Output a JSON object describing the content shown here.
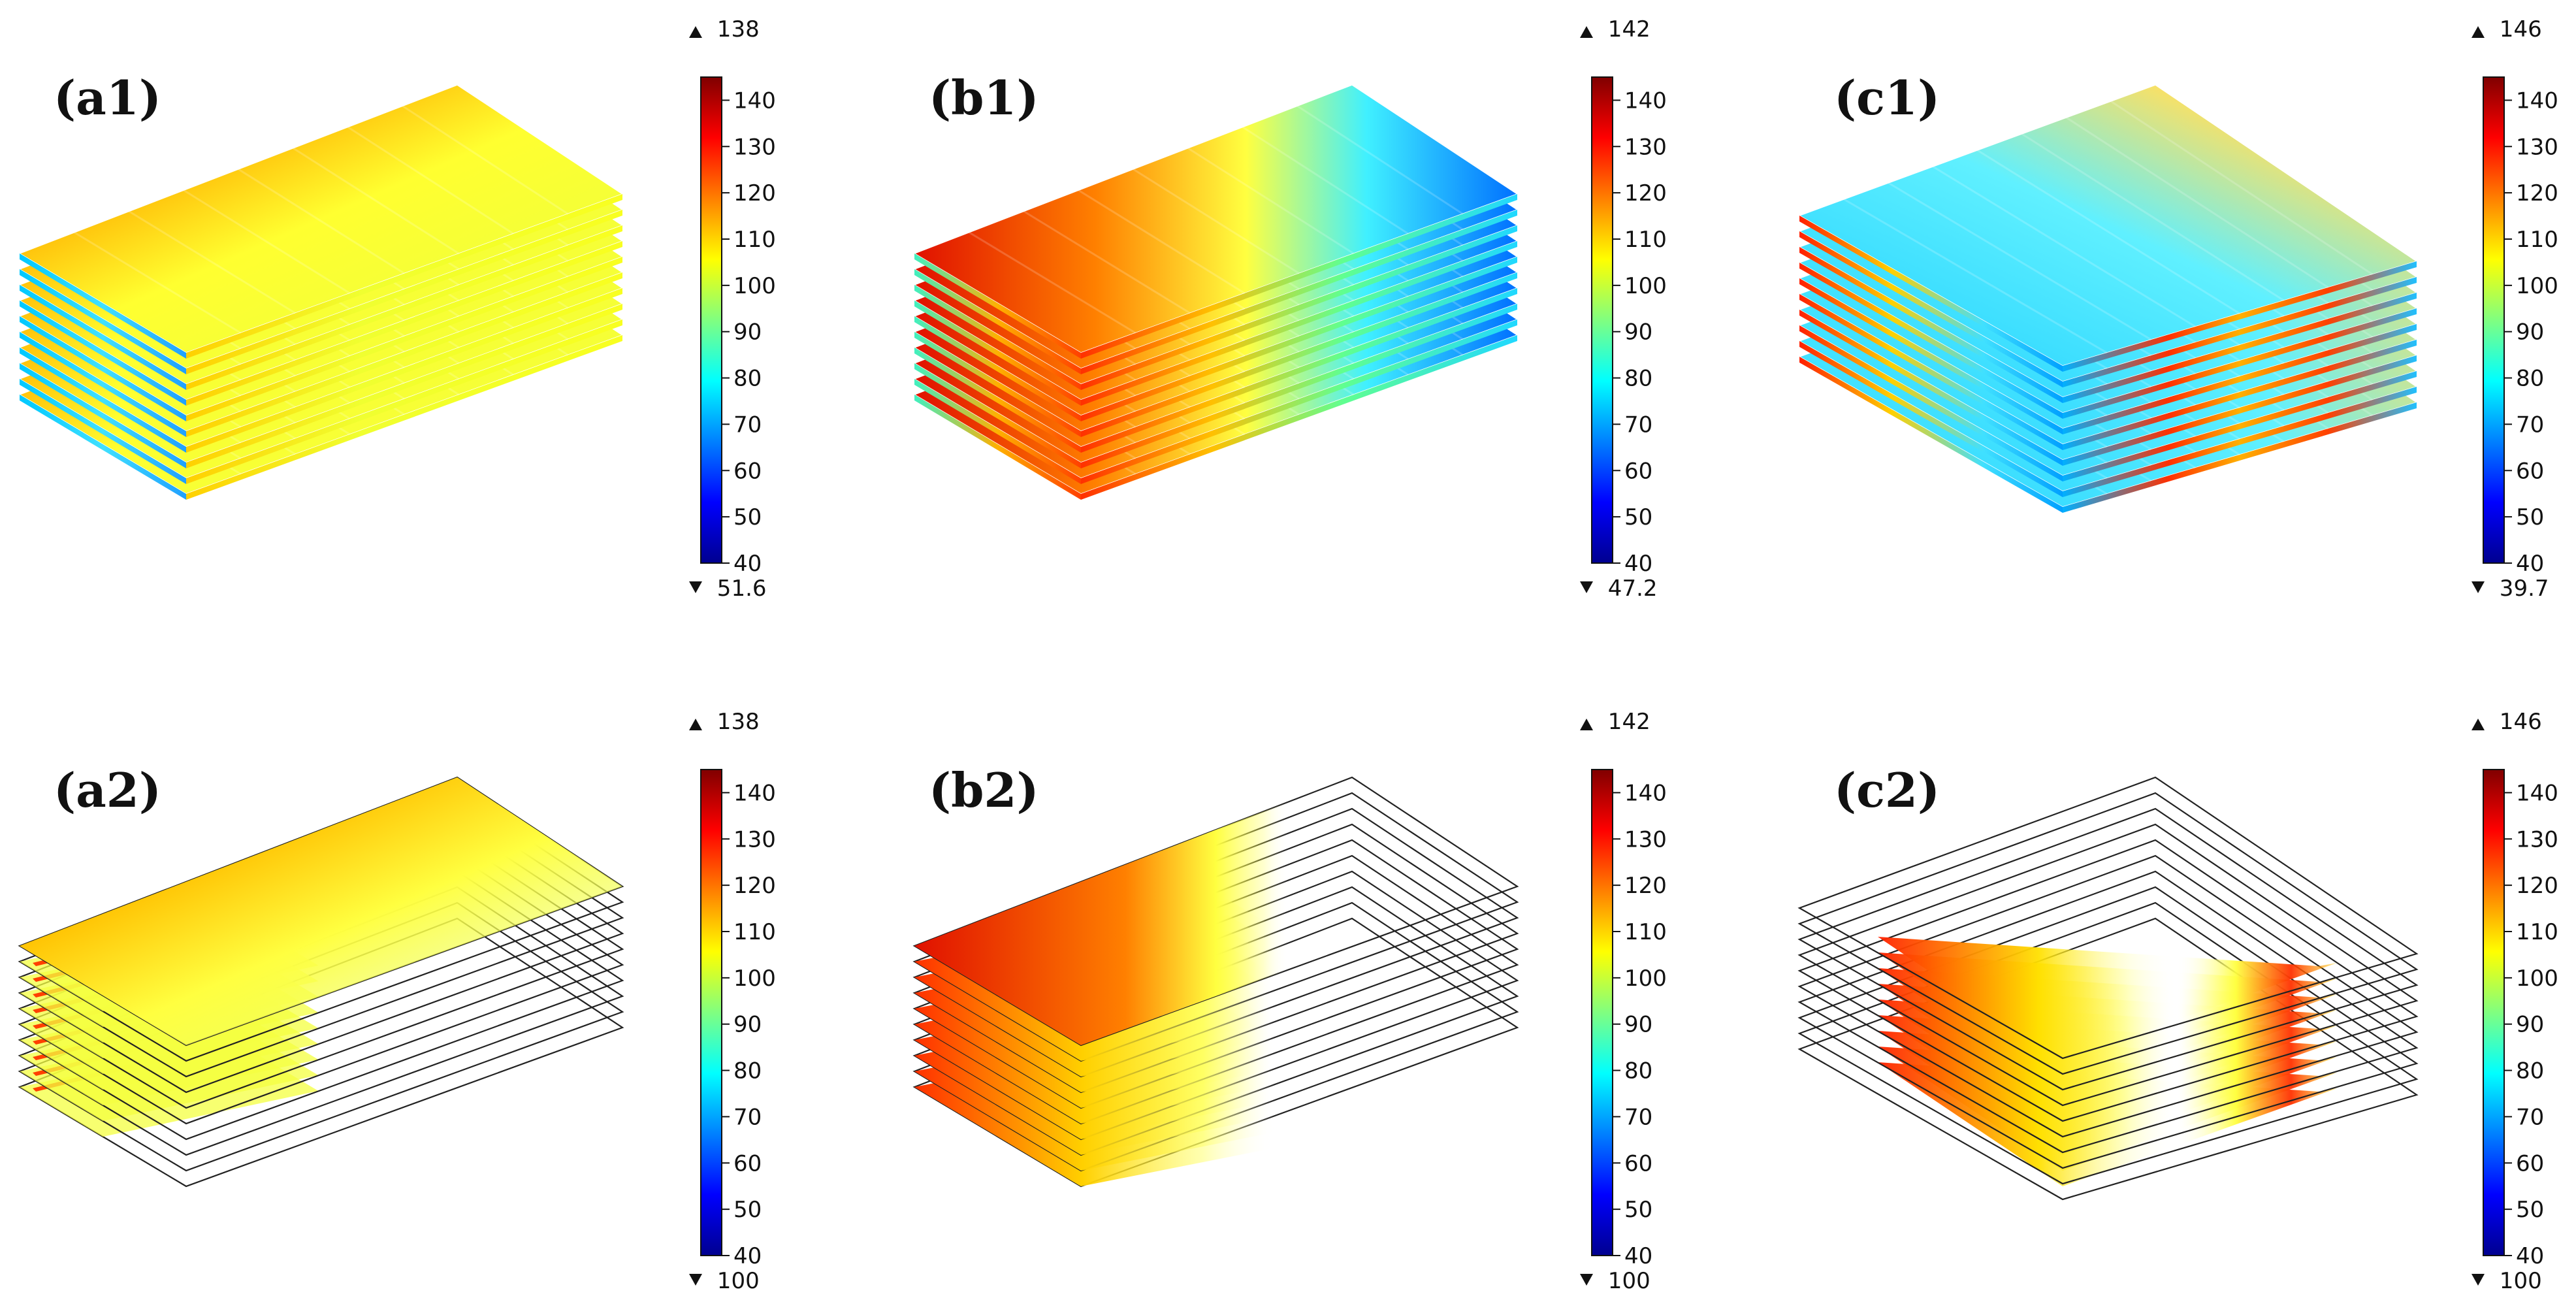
{
  "colormap_stops": [
    "#00008f",
    "#0000ff",
    "#0080ff",
    "#00ffff",
    "#80ff80",
    "#ffff00",
    "#ff8000",
    "#ff0000",
    "#800000"
  ],
  "chart_data": [
    {
      "type": "heatmap",
      "panel": "(a1)",
      "colorbar": {
        "range": [
          40,
          145
        ],
        "ticks": [
          40,
          50,
          60,
          70,
          80,
          90,
          100,
          110,
          120,
          130,
          140
        ],
        "max_label": "138",
        "min_label": "51.6"
      },
      "render": "full",
      "temperature_trend": {
        "hot": 138,
        "cold": 51.6
      },
      "layers": 10
    },
    {
      "type": "heatmap",
      "panel": "(b1)",
      "colorbar": {
        "range": [
          40,
          145
        ],
        "ticks": [
          40,
          50,
          60,
          70,
          80,
          90,
          100,
          110,
          120,
          130,
          140
        ],
        "max_label": "142",
        "min_label": "47.2"
      },
      "render": "full",
      "temperature_trend": {
        "hot": 142,
        "cold": 47.2
      },
      "layers": 10
    },
    {
      "type": "heatmap",
      "panel": "(c1)",
      "colorbar": {
        "range": [
          40,
          145
        ],
        "ticks": [
          40,
          50,
          60,
          70,
          80,
          90,
          100,
          110,
          120,
          130,
          140
        ],
        "max_label": "146",
        "min_label": "39.7"
      },
      "render": "full",
      "temperature_trend": {
        "hot": 146,
        "cold": 39.7
      },
      "layers": 10
    },
    {
      "type": "heatmap",
      "panel": "(a2)",
      "colorbar": {
        "range": [
          40,
          145
        ],
        "ticks": [
          40,
          50,
          60,
          70,
          80,
          90,
          100,
          110,
          120,
          130,
          140
        ],
        "max_label": "138",
        "min_label": "100"
      },
      "render": "threshold",
      "temperature_trend": {
        "hot": 138,
        "cold": 100
      },
      "layers": 10
    },
    {
      "type": "heatmap",
      "panel": "(b2)",
      "colorbar": {
        "range": [
          40,
          145
        ],
        "ticks": [
          40,
          50,
          60,
          70,
          80,
          90,
          100,
          110,
          120,
          130,
          140
        ],
        "max_label": "142",
        "min_label": "100"
      },
      "render": "threshold",
      "temperature_trend": {
        "hot": 142,
        "cold": 100
      },
      "layers": 10
    },
    {
      "type": "heatmap",
      "panel": "(c2)",
      "colorbar": {
        "range": [
          40,
          145
        ],
        "ticks": [
          40,
          50,
          60,
          70,
          80,
          90,
          100,
          110,
          120,
          130,
          140
        ],
        "max_label": "146",
        "min_label": "100"
      },
      "render": "threshold",
      "temperature_trend": {
        "hot": 146,
        "cold": 100
      },
      "layers": 10
    }
  ]
}
